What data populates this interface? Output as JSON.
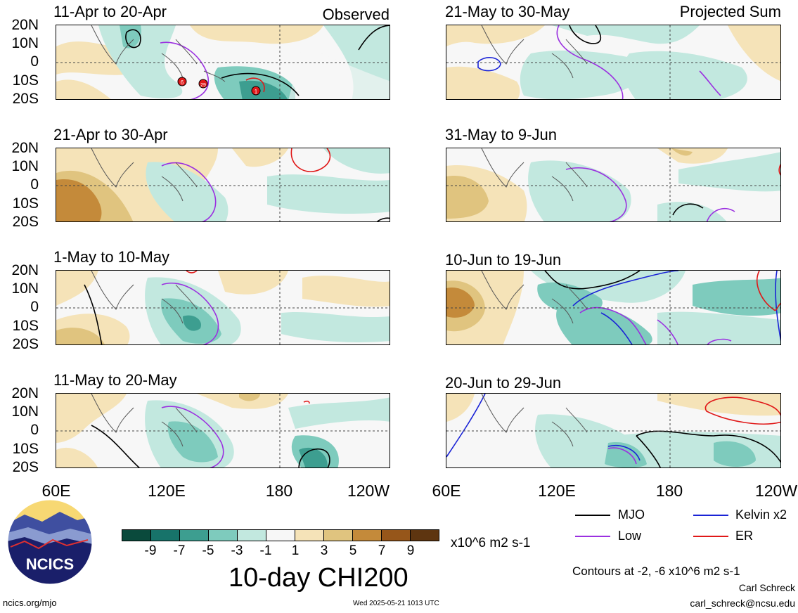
{
  "panels": [
    {
      "title": "11-Apr to 20-Apr",
      "label": "Observed"
    },
    {
      "title": "21-Apr to 30-Apr",
      "label": ""
    },
    {
      "title": "1-May to 10-May",
      "label": ""
    },
    {
      "title": "11-May to 20-May",
      "label": ""
    },
    {
      "title": "21-May to 30-May",
      "label": "Projected Sum"
    },
    {
      "title": "31-May to 9-Jun",
      "label": ""
    },
    {
      "title": "10-Jun to 19-Jun",
      "label": ""
    },
    {
      "title": "20-Jun to 29-Jun",
      "label": ""
    }
  ],
  "lat_labels": [
    "20N",
    "10N",
    "0",
    "10S",
    "20S"
  ],
  "lon_labels": [
    "60E",
    "120E",
    "180",
    "120W"
  ],
  "storm_markers": [
    "6",
    "29",
    "1"
  ],
  "colorbar": {
    "ticks": [
      "-9",
      "-7",
      "-5",
      "-3",
      "-1",
      "1",
      "3",
      "5",
      "7",
      "9"
    ],
    "units": "x10^6 m2 s-1",
    "colors": [
      "#0a4a3c",
      "#17736a",
      "#3d9e90",
      "#7ecbbd",
      "#c2e8df",
      "#f7f7f7",
      "#f5e3b8",
      "#e0c47f",
      "#c48a3a",
      "#96561a",
      "#5e3510"
    ]
  },
  "main_title": "10-day CHI200",
  "logo_text": "NCICS",
  "site": "ncics.org/mjo",
  "timestamp": "Wed 2025-05-21 1013 UTC",
  "legend": [
    {
      "label": "MJO",
      "color": "#000000"
    },
    {
      "label": "Kelvin x2",
      "color": "#1a23d6"
    },
    {
      "label": "Low",
      "color": "#9b30e0"
    },
    {
      "label": "ER",
      "color": "#e01818"
    }
  ],
  "contours_note": "Contours at -2, -6 x10^6 m2 s-1",
  "author": "Carl Schreck",
  "email": "carl_schreck@ncsu.edu"
}
